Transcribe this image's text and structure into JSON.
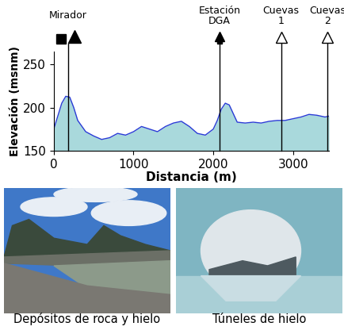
{
  "chart_data": {
    "type": "area",
    "xlabel": "Distancia (m)",
    "ylabel": "Elevación (msnm)",
    "series": [
      {
        "name": "Elevación",
        "color": "#2a3bd6",
        "x": [
          0,
          50,
          100,
          150,
          200,
          250,
          300,
          400,
          500,
          600,
          700,
          800,
          900,
          1000,
          1100,
          1200,
          1300,
          1400,
          1500,
          1600,
          1700,
          1800,
          1900,
          2000,
          2050,
          2100,
          2150,
          2200,
          2250,
          2300,
          2400,
          2500,
          2600,
          2700,
          2800,
          2900,
          3000,
          3100,
          3200,
          3300,
          3400,
          3450
        ],
        "values": [
          175,
          190,
          205,
          213,
          212,
          200,
          185,
          172,
          167,
          163,
          165,
          170,
          168,
          172,
          178,
          175,
          172,
          178,
          182,
          184,
          178,
          170,
          168,
          175,
          185,
          198,
          205,
          203,
          193,
          183,
          182,
          183,
          182,
          184,
          185,
          185,
          187,
          189,
          192,
          191,
          189,
          190
        ]
      }
    ],
    "xlim": [
      0,
      3450
    ],
    "ylim": [
      150,
      265
    ],
    "xticks": [
      0,
      1000,
      2000,
      3000
    ],
    "yticks": [
      150,
      200,
      250
    ],
    "annotations": [
      {
        "label": "Mirador",
        "x": 180
      },
      {
        "label": "Estación\nDGA",
        "x": 2080
      },
      {
        "label": "Cuevas\n1",
        "x": 2850
      },
      {
        "label": "Cuevas\n2",
        "x": 3430
      }
    ],
    "grid": false
  },
  "photos": [
    {
      "caption": "Depósitos de roca y hielo"
    },
    {
      "caption": "Túneles de hielo"
    }
  ]
}
